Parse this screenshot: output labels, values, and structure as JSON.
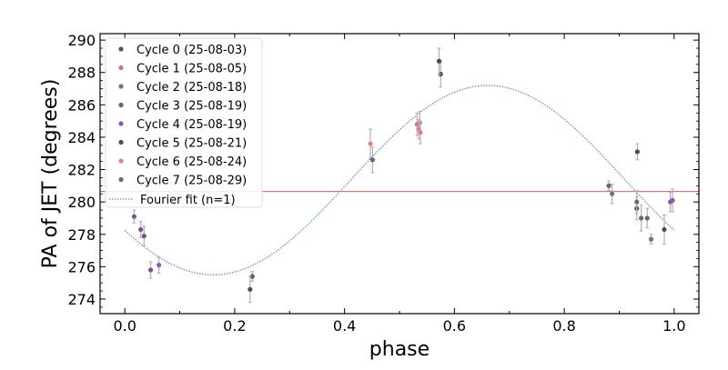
{
  "chart_data": {
    "type": "scatter",
    "xlabel": "phase",
    "ylabel": "PA of JET (degrees)",
    "xlim": [
      -0.045,
      1.045
    ],
    "ylim": [
      273.1,
      290.4
    ],
    "xticks": [
      "0.0",
      "0.2",
      "0.4",
      "0.6",
      "0.8",
      "1.0"
    ],
    "yticks": [
      "274",
      "276",
      "278",
      "280",
      "282",
      "284",
      "286",
      "288",
      "290"
    ],
    "legend_position": "upper-left",
    "series": [
      {
        "name": "Cycle 0 (25-08-03)",
        "color": "#545469",
        "points": [
          {
            "x": 0.232,
            "y": 275.4,
            "err": 0.3
          },
          {
            "x": 0.575,
            "y": 287.9,
            "err": 0.8
          },
          {
            "x": 0.932,
            "y": 279.6,
            "err": 0.7
          }
        ]
      },
      {
        "name": "Cycle 1 (25-08-05)",
        "color": "#c97b8b",
        "points": [
          {
            "x": 0.532,
            "y": 284.8,
            "err": 0.7
          },
          {
            "x": 0.537,
            "y": 284.9,
            "err": 0.7
          }
        ]
      },
      {
        "name": "Cycle 2 (25-08-18)",
        "color": "#727281",
        "points": [
          {
            "x": 0.887,
            "y": 280.5,
            "err": 0.6
          },
          {
            "x": 0.958,
            "y": 277.7,
            "err": 0.3
          }
        ]
      },
      {
        "name": "Cycle 3 (25-08-19)",
        "color": "#7d4e94",
        "points": [
          {
            "x": 0.017,
            "y": 279.1,
            "err": 0.4
          },
          {
            "x": 0.029,
            "y": 278.3,
            "err": 0.5
          },
          {
            "x": 0.035,
            "y": 277.9,
            "err": 0.6
          },
          {
            "x": 0.047,
            "y": 275.8,
            "err": 0.5
          }
        ]
      },
      {
        "name": "Cycle 4 (25-08-19)",
        "color": "#8a5aa6",
        "points": [
          {
            "x": 0.062,
            "y": 276.1,
            "err": 0.5
          },
          {
            "x": 0.993,
            "y": 280.0,
            "err": 0.6
          },
          {
            "x": 0.997,
            "y": 280.1,
            "err": 0.7
          }
        ]
      },
      {
        "name": "Cycle 5 (25-08-21)",
        "color": "#4b4663",
        "points": [
          {
            "x": 0.228,
            "y": 274.6,
            "err": 0.8
          },
          {
            "x": 0.572,
            "y": 288.7,
            "err": 0.8
          },
          {
            "x": 0.933,
            "y": 283.1,
            "err": 0.5
          },
          {
            "x": 0.982,
            "y": 278.3,
            "err": 0.9
          }
        ]
      },
      {
        "name": "Cycle 6 (25-08-24)",
        "color": "#d4848f",
        "points": [
          {
            "x": 0.447,
            "y": 283.6,
            "err": 0.9
          },
          {
            "x": 0.535,
            "y": 284.5,
            "err": 0.6
          },
          {
            "x": 0.538,
            "y": 284.3,
            "err": 0.7
          }
        ]
      },
      {
        "name": "Cycle 7 (25-08-29)",
        "color": "#686875",
        "points": [
          {
            "x": 0.451,
            "y": 282.6,
            "err": 0.8
          },
          {
            "x": 0.881,
            "y": 281.0,
            "err": 0.3
          },
          {
            "x": 0.932,
            "y": 280.0,
            "err": 0.7
          },
          {
            "x": 0.94,
            "y": 279.0,
            "err": 0.8
          },
          {
            "x": 0.951,
            "y": 279.0,
            "err": 0.6
          }
        ]
      }
    ],
    "fit": {
      "name": "Fourier fit (n=1)",
      "color": "#6b8fbf",
      "mean": 281.35,
      "amplitude": 5.85,
      "peak_phase": 0.661,
      "x_range": [
        0.0,
        1.0
      ]
    },
    "hline": {
      "y": 280.65,
      "color": "#c97a7a"
    }
  }
}
